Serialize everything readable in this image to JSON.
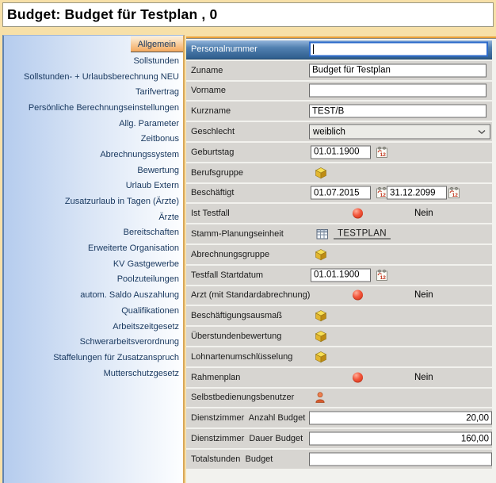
{
  "window": {
    "title": "Budget: Budget für Testplan , 0"
  },
  "sidebar": {
    "items": [
      {
        "label": "Allgemein",
        "active": true
      },
      {
        "label": "Sollstunden"
      },
      {
        "label": "Sollstunden- + Urlaubsberechnung NEU"
      },
      {
        "label": "Tarifvertrag"
      },
      {
        "label": "Persönliche Berechnungseinstellungen"
      },
      {
        "label": "Allg. Parameter"
      },
      {
        "label": "Zeitbonus"
      },
      {
        "label": "Abrechnungssystem"
      },
      {
        "label": "Bewertung"
      },
      {
        "label": "Urlaub Extern"
      },
      {
        "label": "Zusatzurlaub in Tagen (Ärzte)"
      },
      {
        "label": "Ärzte"
      },
      {
        "label": "Bereitschaften"
      },
      {
        "label": "Erweiterte Organisation"
      },
      {
        "label": "KV Gastgewerbe"
      },
      {
        "label": "Poolzuteilungen"
      },
      {
        "label": "autom. Saldo Auszahlung"
      },
      {
        "label": "Qualifikationen"
      },
      {
        "label": "Arbeitszeitgesetz"
      },
      {
        "label": "Schwerarbeitsverordnung"
      },
      {
        "label": "Staffelungen für Zusatzanspruch"
      },
      {
        "label": "Mutterschutzgesetz"
      }
    ]
  },
  "form": {
    "rows": [
      {
        "label": "Personalnummer",
        "type": "text",
        "value": "",
        "selected": true
      },
      {
        "label": "Zuname",
        "type": "text",
        "value": "Budget für Testplan"
      },
      {
        "label": "Vorname",
        "type": "text",
        "value": ""
      },
      {
        "label": "Kurzname",
        "type": "text",
        "value": "TEST/B"
      },
      {
        "label": "Geschlecht",
        "type": "select",
        "value": "weiblich"
      },
      {
        "label": "Geburtstag",
        "type": "date",
        "value": "01.01.1900"
      },
      {
        "label": "Berufsgruppe",
        "type": "cube"
      },
      {
        "label": "Beschäftigt",
        "type": "date2",
        "value": "01.07.2015",
        "value2": "31.12.2099"
      },
      {
        "label": "Ist Testfall",
        "type": "flag",
        "value": "Nein"
      },
      {
        "label": "Stamm-Planungseinheit",
        "type": "link",
        "value": "TESTPLAN"
      },
      {
        "label": "Abrechnungsgruppe",
        "type": "cube"
      },
      {
        "label": "Testfall Startdatum",
        "type": "date",
        "value": "01.01.1900"
      },
      {
        "label": "Arzt (mit Standardabrechnung)",
        "type": "flag",
        "value": "Nein"
      },
      {
        "label": "Beschäftigungsausmaß",
        "type": "cube"
      },
      {
        "label": "Überstundenbewertung",
        "type": "cube"
      },
      {
        "label": "Lohnartenumschlüsselung",
        "type": "cube"
      },
      {
        "label": "Rahmenplan",
        "type": "flag",
        "value": "Nein"
      },
      {
        "label": "Selbstbedienungsbenutzer",
        "type": "person"
      },
      {
        "label": "Dienstzimmer  Anzahl Budget",
        "type": "number",
        "value": "20,00"
      },
      {
        "label": "Dienstzimmer  Dauer Budget",
        "type": "number",
        "value": "160,00"
      },
      {
        "label": "Totalstunden  Budget",
        "type": "number",
        "value": ""
      }
    ]
  },
  "icons": {
    "cube": "cube-icon",
    "calendar": "calendar-icon",
    "red_dot": "red-dot-icon",
    "grid": "table-grid-icon",
    "person": "person-icon",
    "chevron": "chevron-down-icon"
  },
  "colors": {
    "window_frame": "#F7E0A8",
    "header_bg": "#FFFFFF",
    "tab_orange_top": "#FCEDD6",
    "tab_orange_bottom": "#F4A85C",
    "tab_underline": "#55514B",
    "accent_line": "#E9A23B",
    "sidebar_border_blue": "#5F83B1",
    "sidebar_border_tan": "#D9A757",
    "sidebar_text": "#17375E",
    "row_bg": "#D7D5D1",
    "selected_row_bottom": "#2E5D8C",
    "focus_border": "#2D6BCB",
    "status_red": "#F2543A"
  }
}
